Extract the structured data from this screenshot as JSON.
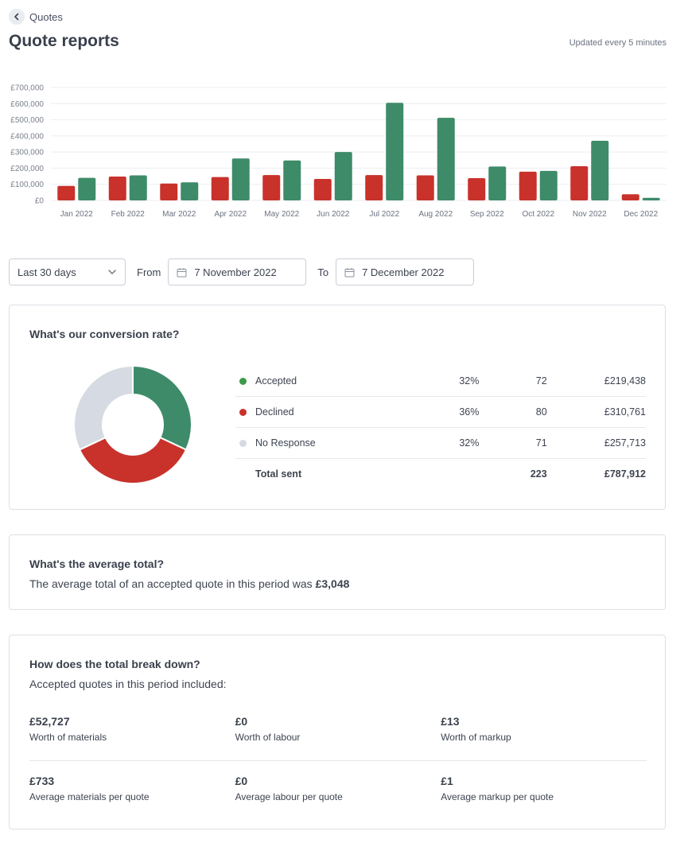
{
  "breadcrumb": {
    "label": "Quotes"
  },
  "page": {
    "title": "Quote reports",
    "updated": "Updated every 5 minutes"
  },
  "chart_data": {
    "type": "bar",
    "categories": [
      "Jan 2022",
      "Feb 2022",
      "Mar 2022",
      "Apr 2022",
      "May 2022",
      "Jun 2022",
      "Jul 2022",
      "Aug 2022",
      "Sep 2022",
      "Oct 2022",
      "Nov 2022",
      "Dec 2022"
    ],
    "series": [
      {
        "color": "#c8322b",
        "values": [
          90000,
          148000,
          105000,
          145000,
          157000,
          133000,
          157000,
          155000,
          138000,
          178000,
          212000,
          38000
        ]
      },
      {
        "color": "#3e8b69",
        "values": [
          140000,
          155000,
          112000,
          260000,
          248000,
          300000,
          605000,
          512000,
          210000,
          183000,
          370000,
          16000
        ]
      }
    ],
    "ylim": [
      0,
      700000
    ],
    "yticks": [
      "£0",
      "£100,000",
      "£200,000",
      "£300,000",
      "£400,000",
      "£500,000",
      "£600,000",
      "£700,000"
    ],
    "grid": true
  },
  "filters": {
    "period": "Last 30 days",
    "from_label": "From",
    "from_value": "7 November 2022",
    "to_label": "To",
    "to_value": "7 December 2022"
  },
  "conversion": {
    "title": "What's our conversion rate?",
    "rows": [
      {
        "label": "Accepted",
        "pct": "32%",
        "count": "72",
        "amount": "£219,438",
        "color": "#3e9a4a",
        "share": 0.32
      },
      {
        "label": "Declined",
        "pct": "36%",
        "count": "80",
        "amount": "£310,761",
        "color": "#c8322b",
        "share": 0.36
      },
      {
        "label": "No Response",
        "pct": "32%",
        "count": "71",
        "amount": "£257,713",
        "color": "#d6dae2",
        "share": 0.32
      }
    ],
    "total": {
      "label": "Total sent",
      "count": "223",
      "amount": "£787,912"
    },
    "donut_colors": [
      "#3e8b69",
      "#c8322b",
      "#d6dae2"
    ]
  },
  "average": {
    "title": "What's the average total?",
    "text": "The average total of an accepted quote in this period was",
    "value": "£3,048"
  },
  "breakdown": {
    "title": "How does the total break down?",
    "subtitle": "Accepted quotes in this period included:",
    "row1": [
      {
        "value": "£52,727",
        "label": "Worth of materials"
      },
      {
        "value": "£0",
        "label": "Worth of labour"
      },
      {
        "value": "£13",
        "label": "Worth of markup"
      }
    ],
    "row2": [
      {
        "value": "£733",
        "label": "Average materials per quote"
      },
      {
        "value": "£0",
        "label": "Average labour per quote"
      },
      {
        "value": "£1",
        "label": "Average markup per quote"
      }
    ]
  }
}
